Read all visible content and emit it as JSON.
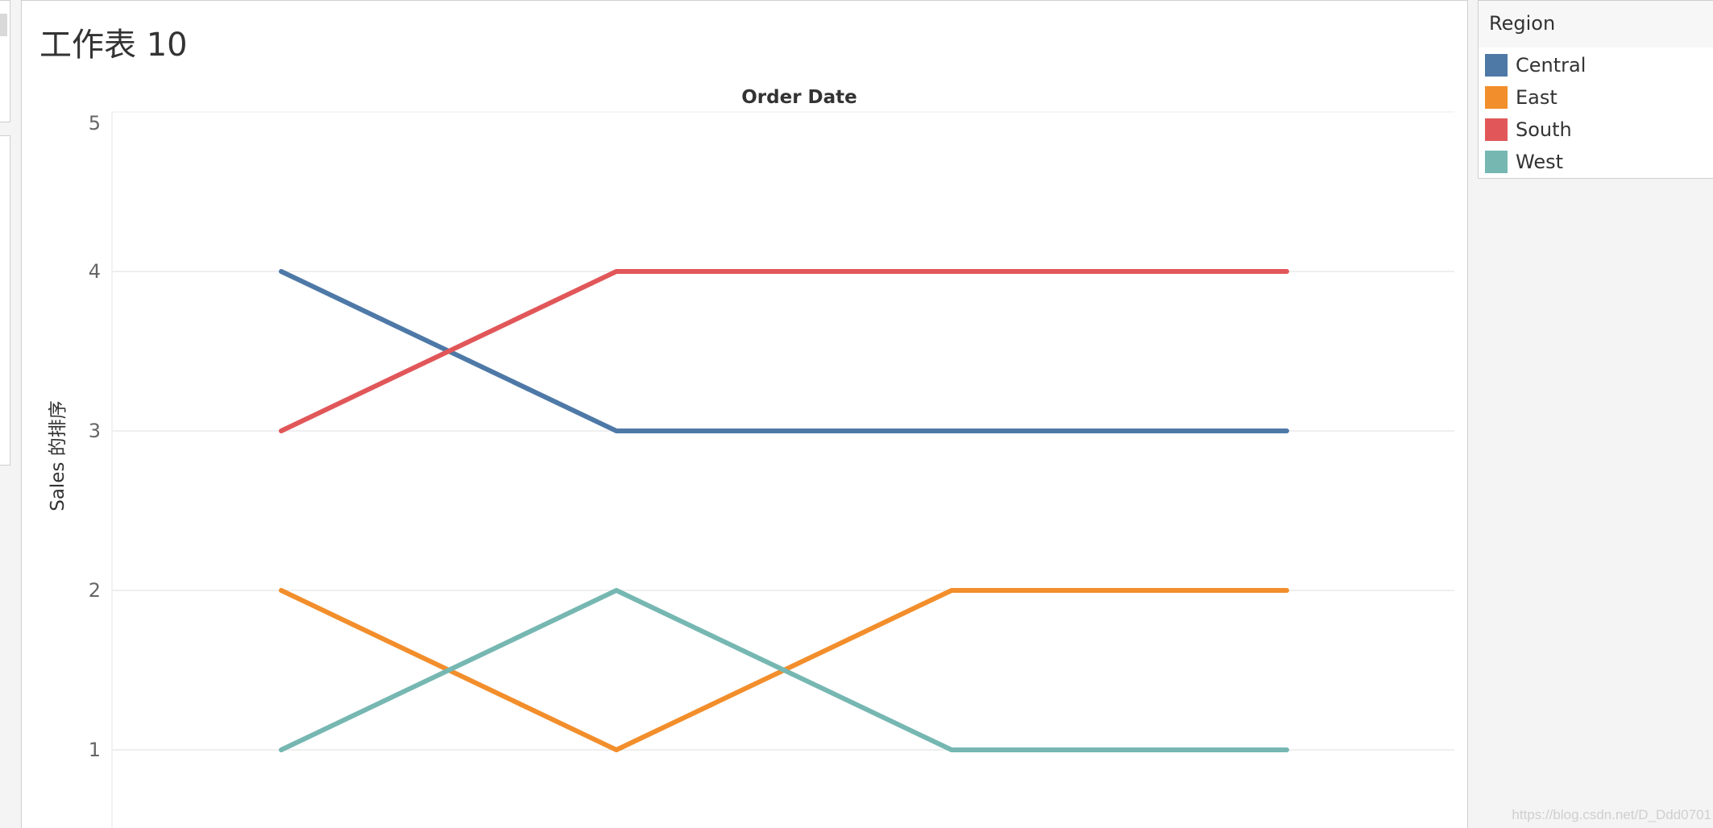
{
  "sheet": {
    "title": "工作表 10"
  },
  "chart_data": {
    "type": "line",
    "xlabel": "Order Date",
    "ylabel": "Sales 的排序",
    "ylim": [
      0.5,
      5
    ],
    "yticks": [
      "1",
      "2",
      "3",
      "4",
      "5"
    ],
    "x": [
      1,
      2,
      3,
      4
    ],
    "grid": true,
    "legend_position": "right",
    "series": [
      {
        "name": "Central",
        "color": "#4e79a7",
        "values": [
          4,
          3,
          3,
          3
        ]
      },
      {
        "name": "East",
        "color": "#f28e2b",
        "values": [
          2,
          1,
          2,
          2
        ]
      },
      {
        "name": "South",
        "color": "#e15759",
        "values": [
          3,
          4,
          4,
          4
        ]
      },
      {
        "name": "West",
        "color": "#76b7b2",
        "values": [
          1,
          2,
          1,
          1
        ]
      }
    ]
  },
  "legend": {
    "title": "Region",
    "items": [
      {
        "label": "Central",
        "color": "#4e79a7"
      },
      {
        "label": "East",
        "color": "#f28e2b"
      },
      {
        "label": "South",
        "color": "#e15759"
      },
      {
        "label": "West",
        "color": "#76b7b2"
      }
    ]
  },
  "watermark": "https://blog.csdn.net/D_Ddd0701"
}
